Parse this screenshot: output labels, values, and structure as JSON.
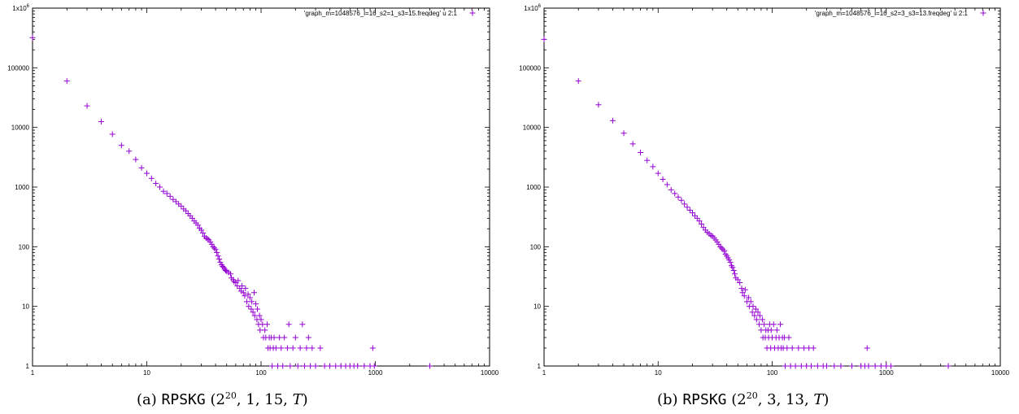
{
  "captions": [
    {
      "label": "(a)",
      "name": "RPSKG",
      "args": "(2^20, 1, 15, T)"
    },
    {
      "label": "(b)",
      "name": "RPSKG",
      "args": "(2^20, 3, 13, T)"
    }
  ],
  "chart_data": [
    {
      "type": "scatter",
      "title": "",
      "xlabel": "",
      "ylabel": "",
      "scale": "log-log",
      "xlim": [
        1,
        10000
      ],
      "ylim": [
        1,
        1000000
      ],
      "x_ticks": [
        "1",
        "10",
        "100",
        "1000",
        "10000"
      ],
      "y_ticks": [
        "1",
        "10",
        "100",
        "1000",
        "10000",
        "100000",
        "1x10^6"
      ],
      "grid": false,
      "legend_position": "top-right",
      "color": "#9400d3",
      "series": [
        {
          "name": "'graph_m=1048576_l=16_s2=1_s3=15.freqdeg' u 2:1",
          "points": [
            [
              1,
              320000
            ],
            [
              2,
              60000
            ],
            [
              3,
              23000
            ],
            [
              4,
              12500
            ],
            [
              5,
              7700
            ],
            [
              6,
              5000
            ],
            [
              7,
              4000
            ],
            [
              8,
              2900
            ],
            [
              9,
              2100
            ],
            [
              10,
              1700
            ],
            [
              11,
              1400
            ],
            [
              12,
              1150
            ],
            [
              13,
              1000
            ],
            [
              14,
              850
            ],
            [
              15,
              780
            ],
            [
              16,
              700
            ],
            [
              17,
              620
            ],
            [
              18,
              570
            ],
            [
              19,
              520
            ],
            [
              20,
              480
            ],
            [
              21,
              430
            ],
            [
              22,
              400
            ],
            [
              23,
              360
            ],
            [
              24,
              330
            ],
            [
              25,
              300
            ],
            [
              26,
              270
            ],
            [
              27,
              250
            ],
            [
              28,
              230
            ],
            [
              29,
              205
            ],
            [
              30,
              190
            ],
            [
              31,
              170
            ],
            [
              32,
              150
            ],
            [
              33,
              140
            ],
            [
              34,
              135
            ],
            [
              35,
              130
            ],
            [
              36,
              120
            ],
            [
              37,
              110
            ],
            [
              38,
              100
            ],
            [
              39,
              95
            ],
            [
              40,
              90
            ],
            [
              41,
              80
            ],
            [
              42,
              70
            ],
            [
              43,
              62
            ],
            [
              44,
              55
            ],
            [
              45,
              50
            ],
            [
              46,
              47
            ],
            [
              47,
              45
            ],
            [
              48,
              42
            ],
            [
              49,
              40
            ],
            [
              50,
              39
            ],
            [
              52,
              37
            ],
            [
              54,
              35
            ],
            [
              55,
              30
            ],
            [
              57,
              28
            ],
            [
              58,
              26
            ],
            [
              60,
              25
            ],
            [
              62,
              22
            ],
            [
              63,
              27
            ],
            [
              65,
              20
            ],
            [
              67,
              18
            ],
            [
              68,
              22
            ],
            [
              70,
              17
            ],
            [
              72,
              15
            ],
            [
              73,
              20
            ],
            [
              75,
              12
            ],
            [
              77,
              16
            ],
            [
              78,
              10
            ],
            [
              80,
              14
            ],
            [
              82,
              9
            ],
            [
              83,
              12
            ],
            [
              85,
              8
            ],
            [
              87,
              17
            ],
            [
              88,
              7
            ],
            [
              90,
              11
            ],
            [
              92,
              6
            ],
            [
              93,
              9
            ],
            [
              95,
              5
            ],
            [
              97,
              7
            ],
            [
              98,
              4
            ],
            [
              100,
              6
            ],
            [
              103,
              5
            ],
            [
              105,
              3
            ],
            [
              108,
              4
            ],
            [
              110,
              3
            ],
            [
              113,
              5
            ],
            [
              115,
              2
            ],
            [
              118,
              3
            ],
            [
              120,
              2
            ],
            [
              123,
              3
            ],
            [
              125,
              1
            ],
            [
              128,
              2
            ],
            [
              130,
              3
            ],
            [
              135,
              2
            ],
            [
              140,
              1
            ],
            [
              145,
              3
            ],
            [
              150,
              2
            ],
            [
              155,
              1
            ],
            [
              160,
              3
            ],
            [
              170,
              2
            ],
            [
              175,
              5
            ],
            [
              180,
              1
            ],
            [
              190,
              2
            ],
            [
              200,
              3
            ],
            [
              210,
              1
            ],
            [
              220,
              2
            ],
            [
              230,
              5
            ],
            [
              240,
              1
            ],
            [
              250,
              2
            ],
            [
              260,
              3
            ],
            [
              270,
              1
            ],
            [
              280,
              2
            ],
            [
              300,
              1
            ],
            [
              330,
              2
            ],
            [
              360,
              1
            ],
            [
              400,
              1
            ],
            [
              450,
              1
            ],
            [
              500,
              1
            ],
            [
              550,
              1
            ],
            [
              600,
              1
            ],
            [
              650,
              1
            ],
            [
              700,
              1
            ],
            [
              800,
              1
            ],
            [
              900,
              1
            ],
            [
              950,
              2
            ],
            [
              980,
              1
            ],
            [
              3000,
              1
            ]
          ]
        }
      ]
    },
    {
      "type": "scatter",
      "title": "",
      "xlabel": "",
      "ylabel": "",
      "scale": "log-log",
      "xlim": [
        1,
        10000
      ],
      "ylim": [
        1,
        1000000
      ],
      "x_ticks": [
        "1",
        "10",
        "100",
        "1000",
        "10000"
      ],
      "y_ticks": [
        "1",
        "10",
        "100",
        "1000",
        "10000",
        "100000",
        "1x10^6"
      ],
      "grid": false,
      "legend_position": "top-right",
      "color": "#9400d3",
      "series": [
        {
          "name": "'graph_m=1048576_l=16_s2=3_s3=13.freqdeg' u 2:1",
          "points": [
            [
              1,
              300000
            ],
            [
              2,
              60000
            ],
            [
              3,
              24000
            ],
            [
              4,
              13000
            ],
            [
              5,
              8000
            ],
            [
              6,
              5300
            ],
            [
              7,
              3800
            ],
            [
              8,
              2800
            ],
            [
              9,
              2200
            ],
            [
              10,
              1700
            ],
            [
              11,
              1350
            ],
            [
              12,
              1100
            ],
            [
              13,
              900
            ],
            [
              14,
              780
            ],
            [
              15,
              680
            ],
            [
              16,
              600
            ],
            [
              17,
              520
            ],
            [
              18,
              460
            ],
            [
              19,
              410
            ],
            [
              20,
              370
            ],
            [
              21,
              330
            ],
            [
              22,
              300
            ],
            [
              23,
              270
            ],
            [
              24,
              240
            ],
            [
              25,
              210
            ],
            [
              26,
              190
            ],
            [
              27,
              175
            ],
            [
              28,
              165
            ],
            [
              29,
              155
            ],
            [
              30,
              150
            ],
            [
              31,
              140
            ],
            [
              32,
              130
            ],
            [
              33,
              120
            ],
            [
              34,
              110
            ],
            [
              35,
              100
            ],
            [
              36,
              95
            ],
            [
              37,
              90
            ],
            [
              38,
              85
            ],
            [
              39,
              75
            ],
            [
              40,
              70
            ],
            [
              41,
              65
            ],
            [
              42,
              60
            ],
            [
              43,
              55
            ],
            [
              44,
              48
            ],
            [
              45,
              45
            ],
            [
              46,
              40
            ],
            [
              47,
              35
            ],
            [
              48,
              30
            ],
            [
              50,
              28
            ],
            [
              52,
              25
            ],
            [
              54,
              20
            ],
            [
              55,
              17
            ],
            [
              57,
              15
            ],
            [
              58,
              19
            ],
            [
              60,
              12
            ],
            [
              62,
              14
            ],
            [
              63,
              10
            ],
            [
              65,
              12
            ],
            [
              67,
              8
            ],
            [
              68,
              10
            ],
            [
              70,
              7
            ],
            [
              72,
              9
            ],
            [
              73,
              6
            ],
            [
              75,
              8
            ],
            [
              77,
              5
            ],
            [
              78,
              7
            ],
            [
              80,
              4
            ],
            [
              82,
              6
            ],
            [
              83,
              3
            ],
            [
              85,
              5
            ],
            [
              87,
              3
            ],
            [
              88,
              4
            ],
            [
              90,
              2
            ],
            [
              92,
              4
            ],
            [
              93,
              3
            ],
            [
              95,
              5
            ],
            [
              97,
              2
            ],
            [
              98,
              4
            ],
            [
              100,
              3
            ],
            [
              103,
              5
            ],
            [
              105,
              2
            ],
            [
              108,
              3
            ],
            [
              110,
              4
            ],
            [
              113,
              2
            ],
            [
              115,
              3
            ],
            [
              118,
              5
            ],
            [
              120,
              2
            ],
            [
              123,
              3
            ],
            [
              125,
              2
            ],
            [
              128,
              3
            ],
            [
              130,
              1
            ],
            [
              135,
              2
            ],
            [
              140,
              3
            ],
            [
              145,
              1
            ],
            [
              150,
              2
            ],
            [
              160,
              1
            ],
            [
              170,
              2
            ],
            [
              180,
              1
            ],
            [
              190,
              2
            ],
            [
              200,
              1
            ],
            [
              210,
              2
            ],
            [
              220,
              1
            ],
            [
              230,
              2
            ],
            [
              250,
              1
            ],
            [
              280,
              1
            ],
            [
              300,
              1
            ],
            [
              350,
              1
            ],
            [
              400,
              1
            ],
            [
              500,
              1
            ],
            [
              600,
              1
            ],
            [
              650,
              1
            ],
            [
              680,
              2
            ],
            [
              700,
              1
            ],
            [
              800,
              1
            ],
            [
              900,
              1
            ],
            [
              1000,
              1
            ],
            [
              1100,
              1
            ],
            [
              3500,
              1
            ]
          ]
        }
      ]
    }
  ]
}
